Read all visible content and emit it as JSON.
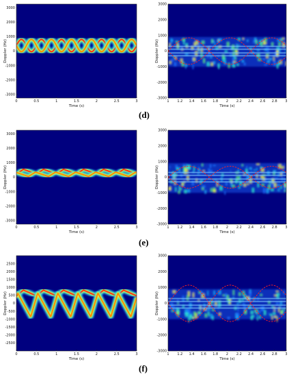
{
  "colors": {
    "background": "#00007f",
    "envelope": "#ff2020",
    "axis": "#222222"
  },
  "chart_data": [
    {
      "type": "heatmap",
      "panel": "d-left",
      "xlabel": "Time (s)",
      "ylabel": "Doppler (Hz)",
      "xlim": [
        0,
        3
      ],
      "ylim": [
        -3250,
        3250
      ],
      "xticks": [
        0,
        0.5,
        1,
        1.5,
        2,
        2.5,
        3
      ],
      "xticklabels": [
        "0",
        "0.5",
        "1",
        "1.5",
        "2",
        "2.5",
        "3"
      ],
      "yticks": [
        -3000,
        -2000,
        -1000,
        0,
        1000,
        2000,
        3000
      ],
      "yticklabels": [
        "-3000",
        "-2000",
        "-1000",
        "0",
        "1000",
        "2000",
        "3000"
      ],
      "series": [
        {
          "kind": "sinusoid",
          "center": 380,
          "amplitude": 420,
          "period": 0.5,
          "phase": 0
        },
        {
          "kind": "sinusoid",
          "center": 380,
          "amplitude": 420,
          "period": 0.5,
          "phase": 3.14
        }
      ]
    },
    {
      "type": "heatmap",
      "panel": "d-right",
      "xlabel": "Time (s)",
      "ylabel": "Doppler (Hz)",
      "xlim": [
        1,
        3
      ],
      "ylim": [
        -3000,
        3000
      ],
      "xticks": [
        1,
        1.2,
        1.4,
        1.6,
        1.8,
        2,
        2.2,
        2.4,
        2.6,
        2.8,
        3
      ],
      "xticklabels": [
        "1",
        "1.2",
        "1.4",
        "1.6",
        "1.8",
        "2",
        "2.2",
        "2.4",
        "2.6",
        "2.8",
        "3"
      ],
      "yticks": [
        -3000,
        -2000,
        -1000,
        0,
        1000,
        2000,
        3000
      ],
      "yticklabels": [
        "-3000",
        "-2000",
        "-1000",
        "0",
        "1000",
        "2000",
        "3000"
      ],
      "envelope": {
        "center": 0,
        "amplitude": 850,
        "period": 1.4
      }
    },
    {
      "type": "heatmap",
      "panel": "e-left",
      "xlabel": "Time (s)",
      "ylabel": "Doppler (Hz)",
      "xlim": [
        0,
        3
      ],
      "ylim": [
        -3250,
        3250
      ],
      "xticks": [
        0,
        0.5,
        1,
        1.5,
        2,
        2.5,
        3
      ],
      "xticklabels": [
        "0",
        "0.5",
        "1",
        "1.5",
        "2",
        "2.5",
        "3"
      ],
      "yticks": [
        -3000,
        -2000,
        -1000,
        0,
        1000,
        2000,
        3000
      ],
      "yticklabels": [
        "-3000",
        "-2000",
        "-1000",
        "0",
        "1000",
        "2000",
        "3000"
      ],
      "series": [
        {
          "kind": "sawtooth",
          "center": 380,
          "amplitude": 170,
          "period": 0.5,
          "phase": 0
        },
        {
          "kind": "sawtooth",
          "center": 200,
          "amplitude": 150,
          "period": 0.5,
          "phase": 2.5
        }
      ]
    },
    {
      "type": "heatmap",
      "panel": "e-right",
      "xlabel": "Time (s)",
      "ylabel": "Doppler (Hz)",
      "xlim": [
        1,
        3
      ],
      "ylim": [
        -3000,
        3000
      ],
      "xticks": [
        1,
        1.2,
        1.4,
        1.6,
        1.8,
        2,
        2.2,
        2.4,
        2.6,
        2.8,
        3
      ],
      "xticklabels": [
        "1",
        "1.2",
        "1.4",
        "1.6",
        "1.8",
        "2",
        "2.2",
        "2.4",
        "2.6",
        "2.8",
        "3"
      ],
      "yticks": [
        -3000,
        -2000,
        -1000,
        0,
        1000,
        2000,
        3000
      ],
      "yticklabels": [
        "-3000",
        "-2000",
        "-1000",
        "0",
        "1000",
        "2000",
        "3000"
      ],
      "envelope": {
        "center": 0,
        "amplitude": 700,
        "period": 1.4
      }
    },
    {
      "type": "heatmap",
      "panel": "f-left",
      "xlabel": "Time (s)",
      "ylabel": "Doppler (Hz)",
      "xlim": [
        0,
        3
      ],
      "ylim": [
        -3000,
        3000
      ],
      "xticks": [
        0,
        0.5,
        1,
        1.5,
        2,
        2.5,
        3
      ],
      "xticklabels": [
        "0",
        "0.5",
        "1",
        "1.5",
        "2",
        "2.5",
        "3"
      ],
      "yticks": [
        -2500,
        -2000,
        -1500,
        -1000,
        -500,
        0,
        500,
        1000,
        1500,
        2000,
        2500
      ],
      "yticklabels": [
        "-2500",
        "-2000",
        "-1500",
        "-1000",
        "-500",
        "0",
        "500",
        "1000",
        "1500",
        "2000",
        "2500"
      ],
      "series": [
        {
          "kind": "sawtooth",
          "center": 650,
          "amplitude": 180,
          "period": 0.5,
          "phase": 0
        },
        {
          "kind": "sawtooth",
          "center": -100,
          "amplitude": 750,
          "period": 0.5,
          "phase": 1.8
        }
      ]
    },
    {
      "type": "heatmap",
      "panel": "f-right",
      "xlabel": "Time (s)",
      "ylabel": "Doppler (Hz)",
      "xlim": [
        1,
        3
      ],
      "ylim": [
        -3000,
        3000
      ],
      "xticks": [
        1,
        1.2,
        1.4,
        1.6,
        1.8,
        2,
        2.2,
        2.4,
        2.6,
        2.8,
        3
      ],
      "xticklabels": [
        "1",
        "1.2",
        "1.4",
        "1.6",
        "1.8",
        "2",
        "2.2",
        "2.4",
        "2.6",
        "2.8",
        "3"
      ],
      "yticks": [
        -3000,
        -2000,
        -1000,
        0,
        1000,
        2000,
        3000
      ],
      "yticklabels": [
        "-3000",
        "-2000",
        "-1000",
        "0",
        "1000",
        "2000",
        "3000"
      ],
      "envelope": {
        "center": 0,
        "amplitude": 1150,
        "period": 1.4
      }
    }
  ],
  "panel_labels": [
    "(d)",
    "(e)",
    "(f)"
  ]
}
